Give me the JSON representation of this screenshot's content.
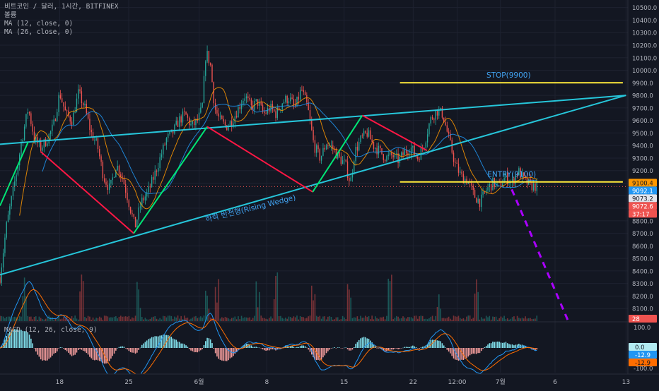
{
  "header": {
    "symbol_line": "비트코인 / 달러, 1시간, BITFINEX",
    "volume_label": "볼륨",
    "ma_fast_label": "MA (12, close, 0)",
    "ma_slow_label": "MA (26, close, 0)"
  },
  "macd_panel": {
    "label": "MACD (12, 26, close, 9)",
    "tick_labels": [
      "100.0",
      "0.0",
      "-100.0"
    ],
    "badges": [
      {
        "text": "0.0",
        "color": "#b2ebf2",
        "text_color": "#131722"
      },
      {
        "text": "-12.9",
        "color": "#2196f3",
        "text_color": "#ffffff"
      },
      {
        "text": "-12.9",
        "color": "#ff6d00",
        "text_color": "#131722"
      }
    ]
  },
  "price_axis": {
    "tick_labels": [
      "10500.0",
      "10400.0",
      "10300.0",
      "10200.0",
      "10100.0",
      "10000.0",
      "9900.0",
      "9800.0",
      "9700.0",
      "9600.0",
      "9500.0",
      "9400.0",
      "9300.0",
      "9200.0",
      "9100.0",
      "9000.0",
      "8900.0",
      "8800.0",
      "8700.0",
      "8600.0",
      "8500.0",
      "8400.0",
      "8300.0",
      "8200.0",
      "8100.0"
    ],
    "badges": [
      {
        "text": "9100.4",
        "color": "#ff9800",
        "text_color": "#131722",
        "value": 9100.4
      },
      {
        "text": "9092.1",
        "color": "#2196f3",
        "text_color": "#ffffff",
        "value": 9092.1
      },
      {
        "text": "9073.2",
        "color": "#e0e3eb",
        "text_color": "#131722",
        "value": 9073.2
      },
      {
        "text": "9072.6",
        "color": "#ef5350",
        "text_color": "#ffffff",
        "value": 9072.6
      },
      {
        "text": "37:17",
        "color": "#ef5350",
        "text_color": "#ffffff",
        "value": 9072.6
      },
      {
        "text": "28",
        "color": "#ef5350",
        "text_color": "#ffffff",
        "value": 8000
      }
    ]
  },
  "time_axis": {
    "tick_labels": [
      "18",
      "25",
      "6월",
      "8",
      "15",
      "22",
      "12:00",
      "7월",
      "6",
      "13"
    ]
  },
  "chart_data": {
    "type": "candlestick",
    "symbol": "BTC/USD",
    "interval": "1h",
    "exchange": "BITFINEX",
    "ylim": [
      8000,
      10560
    ],
    "y_ticks": [
      10500,
      10400,
      10300,
      10200,
      10100,
      10000,
      9900,
      9800,
      9700,
      9600,
      9500,
      9400,
      9300,
      9200,
      9100,
      9000,
      8900,
      8800,
      8700,
      8600,
      8500,
      8400,
      8300,
      8200,
      8100
    ],
    "time_ticks": [
      {
        "label": "18",
        "t": 0.095
      },
      {
        "label": "25",
        "t": 0.205
      },
      {
        "label": "6월",
        "t": 0.317
      },
      {
        "label": "8",
        "t": 0.425
      },
      {
        "label": "15",
        "t": 0.548
      },
      {
        "label": "22",
        "t": 0.658
      },
      {
        "label": "12:00",
        "t": 0.728
      },
      {
        "label": "7월",
        "t": 0.797
      },
      {
        "label": "6",
        "t": 0.884
      },
      {
        "label": "13",
        "t": 0.997
      }
    ],
    "price_path": [
      [
        0.0,
        8350
      ],
      [
        0.01,
        8750
      ],
      [
        0.025,
        9150
      ],
      [
        0.035,
        9450
      ],
      [
        0.045,
        9700
      ],
      [
        0.055,
        9450
      ],
      [
        0.065,
        9380
      ],
      [
        0.075,
        9450
      ],
      [
        0.085,
        9550
      ],
      [
        0.095,
        9820
      ],
      [
        0.105,
        9650
      ],
      [
        0.115,
        9600
      ],
      [
        0.125,
        9820
      ],
      [
        0.135,
        9700
      ],
      [
        0.145,
        9500
      ],
      [
        0.155,
        9400
      ],
      [
        0.165,
        9150
      ],
      [
        0.175,
        9050
      ],
      [
        0.185,
        9250
      ],
      [
        0.195,
        9150
      ],
      [
        0.205,
        8950
      ],
      [
        0.215,
        8750
      ],
      [
        0.225,
        8950
      ],
      [
        0.235,
        9020
      ],
      [
        0.245,
        9150
      ],
      [
        0.255,
        9300
      ],
      [
        0.265,
        9450
      ],
      [
        0.275,
        9500
      ],
      [
        0.285,
        9600
      ],
      [
        0.295,
        9650
      ],
      [
        0.305,
        9550
      ],
      [
        0.315,
        9600
      ],
      [
        0.322,
        9700
      ],
      [
        0.328,
        10150
      ],
      [
        0.335,
        10050
      ],
      [
        0.342,
        9700
      ],
      [
        0.35,
        9600
      ],
      [
        0.36,
        9550
      ],
      [
        0.37,
        9600
      ],
      [
        0.38,
        9700
      ],
      [
        0.39,
        9800
      ],
      [
        0.4,
        9700
      ],
      [
        0.41,
        9750
      ],
      [
        0.42,
        9650
      ],
      [
        0.43,
        9700
      ],
      [
        0.44,
        9650
      ],
      [
        0.45,
        9750
      ],
      [
        0.46,
        9780
      ],
      [
        0.47,
        9700
      ],
      [
        0.48,
        9850
      ],
      [
        0.49,
        9700
      ],
      [
        0.5,
        9400
      ],
      [
        0.51,
        9300
      ],
      [
        0.52,
        9420
      ],
      [
        0.53,
        9380
      ],
      [
        0.54,
        9300
      ],
      [
        0.55,
        9250
      ],
      [
        0.558,
        9100
      ],
      [
        0.565,
        9350
      ],
      [
        0.575,
        9450
      ],
      [
        0.585,
        9500
      ],
      [
        0.595,
        9400
      ],
      [
        0.605,
        9350
      ],
      [
        0.615,
        9300
      ],
      [
        0.625,
        9320
      ],
      [
        0.635,
        9280
      ],
      [
        0.645,
        9350
      ],
      [
        0.655,
        9380
      ],
      [
        0.665,
        9300
      ],
      [
        0.675,
        9400
      ],
      [
        0.685,
        9600
      ],
      [
        0.695,
        9680
      ],
      [
        0.705,
        9650
      ],
      [
        0.715,
        9450
      ],
      [
        0.725,
        9250
      ],
      [
        0.735,
        9150
      ],
      [
        0.745,
        9120
      ],
      [
        0.755,
        9000
      ],
      [
        0.765,
        8950
      ],
      [
        0.775,
        9050
      ],
      [
        0.785,
        9100
      ],
      [
        0.795,
        9080
      ],
      [
        0.805,
        9150
      ],
      [
        0.815,
        9100
      ],
      [
        0.825,
        9200
      ],
      [
        0.835,
        9120
      ],
      [
        0.845,
        9080
      ],
      [
        0.855,
        9073
      ]
    ],
    "volume_spikes": [
      0.04,
      0.13,
      0.22,
      0.33,
      0.345,
      0.41,
      0.44,
      0.5,
      0.555,
      0.62,
      0.7,
      0.76
    ],
    "trendlines": [
      {
        "name": "upper-wedge-line",
        "color": "#26c6da",
        "points": [
          [
            0.0,
            9410
          ],
          [
            0.997,
            9800
          ]
        ]
      },
      {
        "name": "lower-wedge-line",
        "color": "#26c6da",
        "points": [
          [
            0.0,
            8370
          ],
          [
            0.997,
            9800
          ]
        ]
      },
      {
        "name": "stop-line",
        "color": "#ffeb3b",
        "points": [
          [
            0.637,
            9900
          ],
          [
            0.992,
            9900
          ]
        ]
      },
      {
        "name": "entry-line",
        "color": "#ffeb3b",
        "points": [
          [
            0.637,
            9110
          ],
          [
            0.992,
            9110
          ]
        ]
      },
      {
        "name": "zigzag-up-1",
        "color": "#00e676",
        "points": [
          [
            0.0,
            8920
          ],
          [
            0.045,
            9430
          ]
        ]
      },
      {
        "name": "zigzag-down-1",
        "color": "#ff1744",
        "points": [
          [
            0.065,
            9350
          ],
          [
            0.213,
            8700
          ]
        ]
      },
      {
        "name": "zigzag-up-2",
        "color": "#00e676",
        "points": [
          [
            0.213,
            8700
          ],
          [
            0.33,
            9550
          ]
        ]
      },
      {
        "name": "zigzag-down-2",
        "color": "#ff1744",
        "points": [
          [
            0.33,
            9550
          ],
          [
            0.498,
            9030
          ]
        ]
      },
      {
        "name": "zigzag-up-3",
        "color": "#00e676",
        "points": [
          [
            0.498,
            9030
          ],
          [
            0.577,
            9640
          ]
        ]
      },
      {
        "name": "zigzag-down-3",
        "color": "#ff1744",
        "points": [
          [
            0.577,
            9640
          ],
          [
            0.68,
            9360
          ]
        ]
      },
      {
        "name": "projection-line",
        "color": "#aa00ff",
        "dashed": true,
        "points": [
          [
            0.815,
            9050
          ],
          [
            0.905,
            8000
          ]
        ]
      }
    ],
    "annotations": [
      {
        "text": "STOP(9900)",
        "t": 0.81,
        "value": 9940,
        "color": "#42a5f5"
      },
      {
        "text": "ENTRY(9100)",
        "t": 0.815,
        "value": 9150,
        "color": "#42a5f5"
      },
      {
        "text": "하락 반전형(Rising Wedge)",
        "t": 0.4,
        "value": 8880,
        "color": "#42a5f5",
        "rotate": -14
      }
    ],
    "moving_averages": [
      {
        "name": "MA (12, close, 0)",
        "color": "#ff9800",
        "period": 12
      },
      {
        "name": "MA (26, close, 0)",
        "color": "#2196f3",
        "period": 26
      }
    ],
    "macd": {
      "fast": 12,
      "slow": 26,
      "signal": 9,
      "last_macd": -12.9,
      "last_signal": -12.9,
      "ylim": [
        -120,
        120
      ]
    }
  }
}
